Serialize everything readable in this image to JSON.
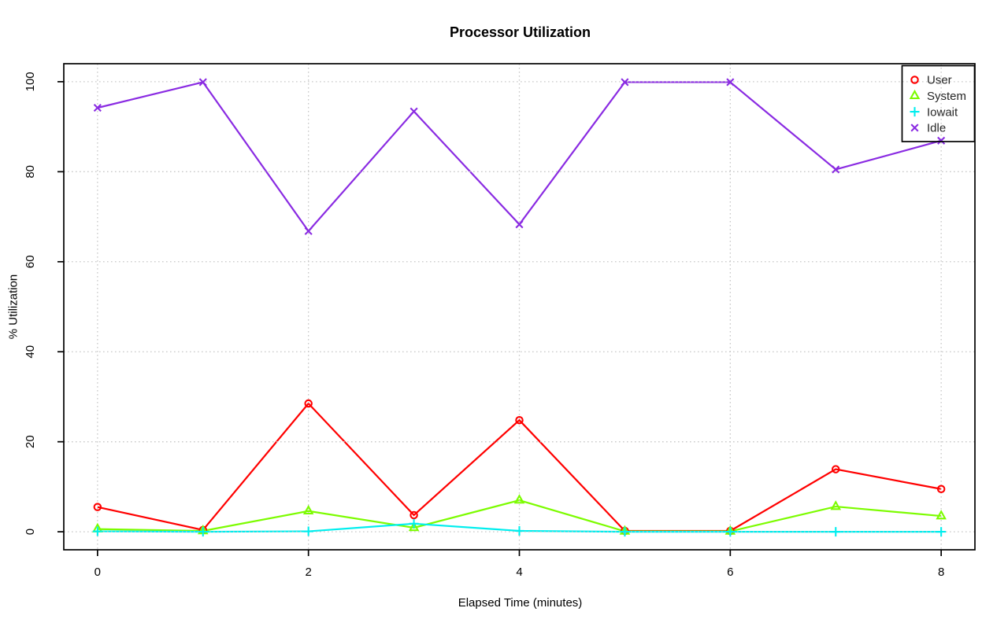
{
  "chart_data": {
    "type": "line",
    "title": "Processor Utilization",
    "xlabel": "Elapsed Time (minutes)",
    "ylabel": "% Utilization",
    "x": [
      0,
      1,
      2,
      3,
      4,
      5,
      6,
      7,
      8
    ],
    "xlim": [
      0,
      8
    ],
    "ylim": [
      0,
      100
    ],
    "xticks": [
      0,
      2,
      4,
      6,
      8
    ],
    "yticks": [
      0,
      20,
      40,
      60,
      80,
      100
    ],
    "grid": {
      "style": "dotted",
      "color": "#c8c8c8",
      "drawn_over_lines": true
    },
    "legend": {
      "position": "topright",
      "border": true,
      "background": "transparent"
    },
    "axis_color": "#000000",
    "background": "#ffffff",
    "series": [
      {
        "name": "User",
        "color": "#ff0000",
        "marker": "circle-open",
        "values": [
          5.5,
          0.4,
          28.5,
          3.7,
          24.8,
          0.2,
          0.2,
          13.9,
          9.5
        ]
      },
      {
        "name": "System",
        "color": "#7cfc00",
        "marker": "triangle-open",
        "values": [
          0.6,
          0.2,
          4.6,
          0.9,
          7.0,
          0.1,
          0.1,
          5.6,
          3.5
        ]
      },
      {
        "name": "Iowait",
        "color": "#00eeee",
        "marker": "plus",
        "values": [
          0.1,
          0.0,
          0.1,
          1.8,
          0.2,
          0.0,
          0.0,
          0.0,
          0.0
        ]
      },
      {
        "name": "Idle",
        "color": "#8a2be2",
        "marker": "x",
        "values": [
          94.2,
          99.9,
          66.8,
          93.4,
          68.3,
          99.9,
          99.9,
          80.5,
          86.9
        ]
      }
    ]
  }
}
